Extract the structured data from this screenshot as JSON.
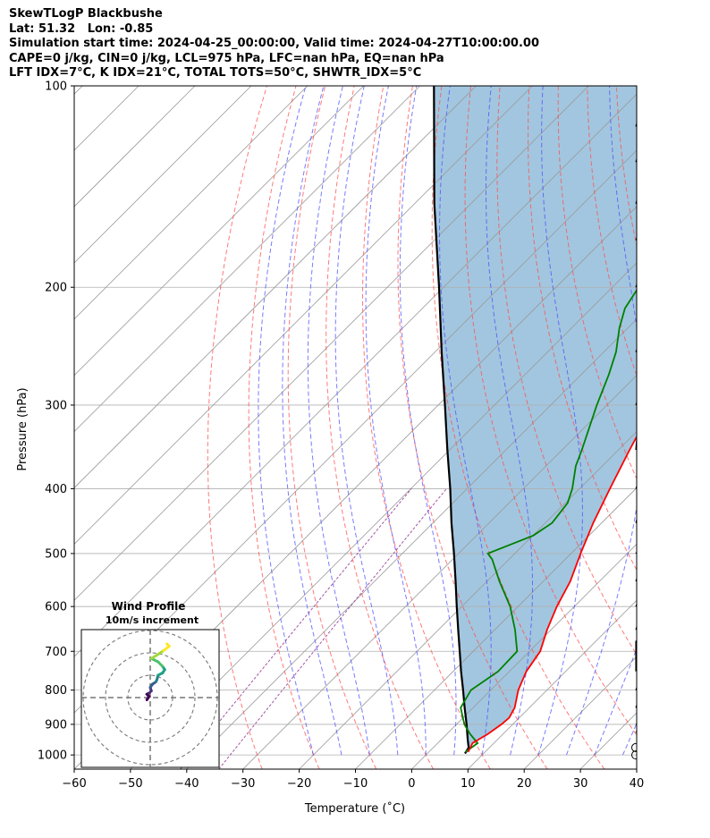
{
  "header": {
    "lines": [
      "SkewTLogP Blackbushe",
      "Lat: 51.32   Lon: -0.85",
      "Simulation start time: 2024-04-25_00:00:00, Valid time: 2024-04-27T10:00:00.00",
      "CAPE=0 j/kg, CIN=0 j/kg, LCL=975 hPa, LFC=nan hPa, EQ=nan hPa",
      "LFT IDX=7°C, K IDX=21°C, TOTAL TOTS=50°C, SHWTR_IDX=5°C"
    ]
  },
  "chart_data": {
    "type": "skewt-logp",
    "xlabel": "Temperature (˚C)",
    "ylabel": "Pressure (hPa)",
    "xlim": [
      -60,
      40
    ],
    "ylim": [
      1050,
      100
    ],
    "y_scale": "log",
    "skew_deg": 45,
    "grid": true,
    "x_ticks": [
      -60,
      -50,
      -40,
      -30,
      -20,
      -10,
      0,
      10,
      20,
      30,
      40
    ],
    "y_ticks": [
      1000,
      900,
      800,
      700,
      600,
      500,
      400,
      300,
      200,
      100
    ],
    "colors": {
      "temperature": "#ff0000",
      "dewpoint": "#008000",
      "parcel": "#000000",
      "cape_fill": "#a2c6df",
      "dry_adiabat": "#ff4d4d",
      "moist_adiabat": "#4d4dff",
      "mixing_ratio": "#8c2a8c",
      "isotherm": "#999999"
    },
    "temperature_profile": [
      [
        990,
        7.0
      ],
      [
        960,
        6.2
      ],
      [
        930,
        7.3
      ],
      [
        900,
        8.0
      ],
      [
        880,
        8.2
      ],
      [
        850,
        7.4
      ],
      [
        800,
        4.9
      ],
      [
        750,
        3.0
      ],
      [
        700,
        1.9
      ],
      [
        650,
        -0.7
      ],
      [
        600,
        -3.1
      ],
      [
        550,
        -5.2
      ],
      [
        500,
        -8.3
      ],
      [
        450,
        -11.5
      ],
      [
        400,
        -14.6
      ],
      [
        370,
        -16.6
      ],
      [
        350,
        -18.0
      ],
      [
        330,
        -19.4
      ],
      [
        300,
        -22.4
      ],
      [
        280,
        -24.6
      ],
      [
        250,
        -27.7
      ],
      [
        230,
        -31.1
      ],
      [
        215,
        -34.5
      ],
      [
        200,
        -37.1
      ],
      [
        190,
        -39.5
      ],
      [
        170,
        -42.8
      ],
      [
        160,
        -45.0
      ],
      [
        150,
        -46.7
      ],
      [
        140,
        -47.8
      ],
      [
        120,
        -50.5
      ],
      [
        110,
        -51.2
      ],
      [
        100,
        -52.0
      ]
    ],
    "dewpoint_profile": [
      [
        990,
        6.5
      ],
      [
        960,
        7.1
      ],
      [
        930,
        4.1
      ],
      [
        900,
        1.4
      ],
      [
        850,
        -2.2
      ],
      [
        800,
        -3.5
      ],
      [
        750,
        -2.0
      ],
      [
        700,
        -2.2
      ],
      [
        650,
        -6.4
      ],
      [
        600,
        -11.4
      ],
      [
        550,
        -17.8
      ],
      [
        510,
        -23.0
      ],
      [
        500,
        -24.8
      ],
      [
        470,
        -19.9
      ],
      [
        450,
        -18.8
      ],
      [
        420,
        -19.6
      ],
      [
        400,
        -21.3
      ],
      [
        370,
        -24.7
      ],
      [
        350,
        -26.5
      ],
      [
        300,
        -31.8
      ],
      [
        270,
        -35.1
      ],
      [
        250,
        -37.8
      ],
      [
        230,
        -41.5
      ],
      [
        215,
        -44.0
      ],
      [
        200,
        -45.3
      ],
      [
        185,
        -47.0
      ],
      [
        170,
        -48.6
      ],
      [
        160,
        -49.1
      ],
      [
        140,
        -58.0
      ],
      [
        120,
        -69.0
      ],
      [
        100,
        -80.0
      ]
    ],
    "parcel_profile": [
      [
        995,
        6.7
      ],
      [
        975,
        6.3
      ],
      [
        950,
        4.8
      ],
      [
        900,
        1.8
      ],
      [
        850,
        -1.5
      ],
      [
        800,
        -4.9
      ],
      [
        750,
        -8.6
      ],
      [
        700,
        -12.4
      ],
      [
        650,
        -16.5
      ],
      [
        600,
        -20.9
      ],
      [
        550,
        -25.6
      ],
      [
        500,
        -30.8
      ],
      [
        450,
        -36.7
      ],
      [
        400,
        -43.0
      ],
      [
        350,
        -50.4
      ],
      [
        300,
        -58.8
      ],
      [
        250,
        -68.8
      ],
      [
        200,
        -80.8
      ],
      [
        150,
        -96.5
      ],
      [
        100,
        -117.5
      ]
    ],
    "wind_barbs": [
      {
        "p": 1000,
        "u": 0.5,
        "v": 2.0
      },
      {
        "p": 975,
        "u": 0.5,
        "v": 2.0
      },
      {
        "p": 925,
        "u": -2.0,
        "v": -2.0
      },
      {
        "p": 900,
        "u": -3.0,
        "v": -1.5
      },
      {
        "p": 850,
        "u": -3.0,
        "v": -9.0
      },
      {
        "p": 800,
        "u": -3.0,
        "v": -9.0
      },
      {
        "p": 750,
        "u": 0.0,
        "v": -10.0
      },
      {
        "p": 700,
        "u": -2.0,
        "v": -10.0
      },
      {
        "p": 650,
        "u": -3.0,
        "v": -10.0
      },
      {
        "p": 600,
        "u": -4.0,
        "v": -10.0
      },
      {
        "p": 550,
        "u": -4.0,
        "v": -12.0
      },
      {
        "p": 500,
        "u": -8.0,
        "v": -12.0
      },
      {
        "p": 450,
        "u": -4.0,
        "v": -15.0
      },
      {
        "p": 400,
        "u": -5.0,
        "v": -13.0
      },
      {
        "p": 350,
        "u": -1.0,
        "v": -13.0
      },
      {
        "p": 300,
        "u": -5.0,
        "v": -15.0
      },
      {
        "p": 250,
        "u": -5.0,
        "v": -15.0
      },
      {
        "p": 200,
        "u": -5.0,
        "v": -16.0
      },
      {
        "p": 170,
        "u": -7.0,
        "v": -17.0
      },
      {
        "p": 150,
        "u": -5.0,
        "v": -17.0
      },
      {
        "p": 130,
        "u": -5.0,
        "v": -17.0
      },
      {
        "p": 115,
        "u": -5.0,
        "v": -17.0
      },
      {
        "p": 100,
        "u": -5.0,
        "v": -17.0
      }
    ],
    "hodograph": {
      "title": "Wind Profile",
      "subtitle": "10m/s increment",
      "rings": [
        10,
        20,
        30
      ],
      "points": [
        [
          -1.5,
          -1.0
        ],
        [
          -0.5,
          0.5
        ],
        [
          -1.5,
          1.5
        ],
        [
          -0.5,
          2.0
        ],
        [
          0.5,
          3.0
        ],
        [
          0.0,
          4.5
        ],
        [
          1.0,
          6.0
        ],
        [
          2.5,
          7.0
        ],
        [
          3.0,
          8.0
        ],
        [
          3.5,
          10.0
        ],
        [
          5.5,
          11.0
        ],
        [
          6.5,
          12.5
        ],
        [
          5.5,
          14.0
        ],
        [
          3.5,
          16.0
        ],
        [
          0.5,
          17.5
        ],
        [
          3.0,
          19.0
        ],
        [
          6.0,
          21.0
        ],
        [
          8.5,
          23.0
        ],
        [
          7.5,
          24.0
        ]
      ]
    }
  }
}
